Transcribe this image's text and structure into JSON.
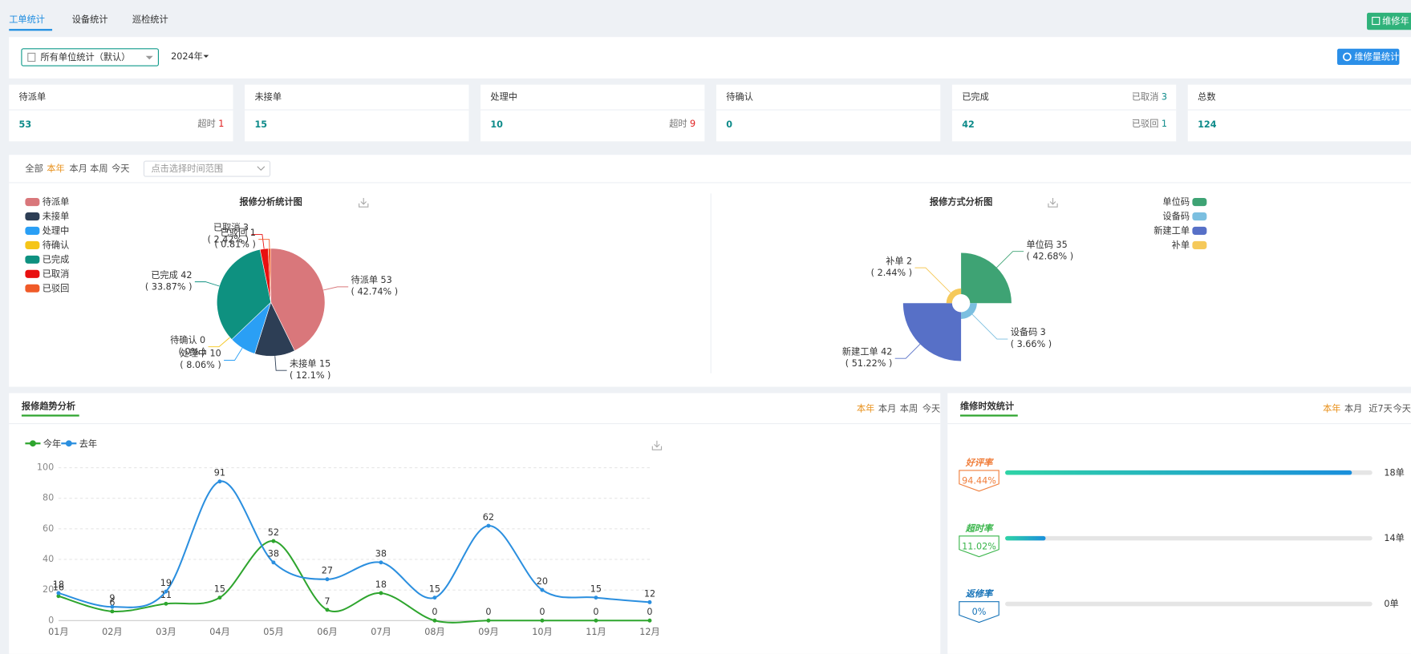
{
  "tabs": [
    "工单统计",
    "设备统计",
    "巡检统计"
  ],
  "top_button": "维修年",
  "filter": {
    "unit": "所有单位统计（默认）",
    "year": "2024年",
    "button": "维修量统计"
  },
  "cards": [
    {
      "label": "待派单",
      "value": 53,
      "notes": [
        {
          "label": "超时",
          "value": 1,
          "color": "#e02020"
        }
      ]
    },
    {
      "label": "未接单",
      "value": 15,
      "notes": []
    },
    {
      "label": "处理中",
      "value": 10,
      "notes": [
        {
          "label": "超时",
          "value": 9,
          "color": "#e02020"
        }
      ]
    },
    {
      "label": "待确认",
      "value": 0,
      "notes": []
    },
    {
      "label": "已完成",
      "value": 42,
      "notes": [
        {
          "label": "已取消",
          "value": 3,
          "color": "#0e8b8a"
        },
        {
          "label": "已驳回",
          "value": 1,
          "color": "#0e8b8a"
        }
      ]
    },
    {
      "label": "总数",
      "value": 124,
      "notes": []
    }
  ],
  "time_filters": [
    "全部",
    "本年",
    "本月",
    "本周",
    "今天"
  ],
  "time_placeholder": "点击选择时间范围",
  "chart_data": [
    {
      "type": "pie",
      "title": "报修分析统计图",
      "categories": [
        "待派单",
        "未接单",
        "处理中",
        "待确认",
        "已完成",
        "已取消",
        "已驳回"
      ],
      "values": [
        53,
        15,
        10,
        0,
        42,
        3,
        1
      ],
      "percent_labels": [
        "( 42.74% )",
        "( 12.1% )",
        "( 8.06% )",
        "( 0% )",
        "( 33.87% )",
        "( 2.42% )",
        "( 0.81% )"
      ],
      "colors": [
        "#d9777b",
        "#2d3e55",
        "#2a9ff5",
        "#f5c518",
        "#0e9180",
        "#e81010",
        "#f05a28"
      ]
    },
    {
      "type": "rose",
      "title": "报修方式分析图",
      "categories": [
        "单位码",
        "设备码",
        "新建工单",
        "补单"
      ],
      "values": [
        35,
        3,
        42,
        2
      ],
      "percent_labels": [
        "( 42.68% )",
        "( 3.66% )",
        "( 51.22% )",
        "( 2.44% )"
      ],
      "colors": [
        "#3ea374",
        "#7bbfe0",
        "#5770c7",
        "#f5c95a"
      ]
    },
    {
      "type": "line",
      "title": "报修趋势分析",
      "filters": [
        "本年",
        "本月",
        "本周",
        "今天"
      ],
      "categories": [
        "01月",
        "02月",
        "03月",
        "04月",
        "05月",
        "06月",
        "07月",
        "08月",
        "09月",
        "10月",
        "11月",
        "12月"
      ],
      "series": [
        {
          "name": "今年",
          "color": "#2ea52e",
          "values": [
            16,
            6,
            11,
            15,
            52,
            7,
            18,
            0,
            0,
            0,
            0,
            0
          ]
        },
        {
          "name": "去年",
          "color": "#2b8fdf",
          "values": [
            18,
            9,
            19,
            91,
            38,
            27,
            38,
            15,
            62,
            20,
            15,
            12
          ]
        }
      ],
      "ylim": [
        0,
        100
      ],
      "yticks": [
        0,
        20,
        40,
        60,
        80,
        100
      ],
      "grid": true
    }
  ],
  "efficiency": {
    "title": "维修时效统计",
    "filters": [
      "本年",
      "本月",
      "近7天",
      "今天"
    ],
    "rows": [
      {
        "label": "好评率",
        "value": 94.44,
        "value_label": "94.44%",
        "count_label": "18单",
        "color": "#f07d3a"
      },
      {
        "label": "超时率",
        "value": 11.02,
        "value_label": "11.02%",
        "count_label": "14单",
        "color": "#39b54a"
      },
      {
        "label": "返修率",
        "value": 0,
        "value_label": "0%",
        "count_label": "0单",
        "color": "#1673b8"
      }
    ]
  }
}
